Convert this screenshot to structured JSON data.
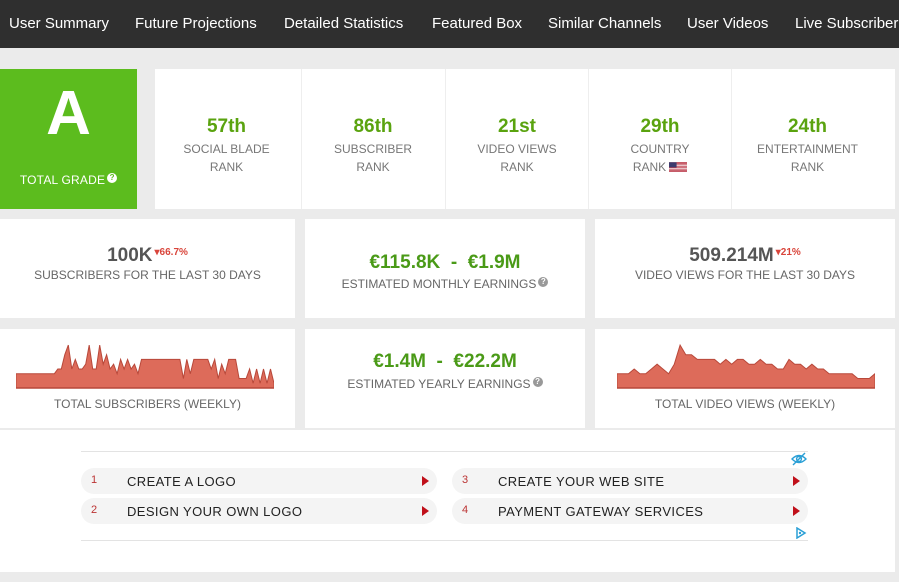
{
  "nav": {
    "items": [
      {
        "label": "User Summary"
      },
      {
        "label": "Future Projections"
      },
      {
        "label": "Detailed Statistics"
      },
      {
        "label": "Featured Box"
      },
      {
        "label": "Similar Channels"
      },
      {
        "label": "User Videos"
      },
      {
        "label": "Live Subscriber"
      }
    ]
  },
  "grade": {
    "letter": "A",
    "label": "TOTAL GRADE",
    "help_icon": "question-circle-icon",
    "color": "#5cbc1e"
  },
  "ranks": [
    {
      "value": "57th",
      "line1": "SOCIAL BLADE",
      "line2": "RANK"
    },
    {
      "value": "86th",
      "line1": "SUBSCRIBER",
      "line2": "RANK"
    },
    {
      "value": "21st",
      "line1": "VIDEO VIEWS",
      "line2": "RANK"
    },
    {
      "value": "29th",
      "line1": "COUNTRY",
      "line2": "RANK",
      "flag": "us-flag-icon"
    },
    {
      "value": "24th",
      "line1": "ENTERTAINMENT",
      "line2": "RANK"
    }
  ],
  "stats": {
    "subscribers_30d": {
      "value": "100K",
      "delta": "66.7%",
      "delta_direction": "down",
      "label": "SUBSCRIBERS FOR THE LAST 30 DAYS"
    },
    "monthly_earnings": {
      "value": "€115.8K  -  €1.9M",
      "label": "ESTIMATED MONTHLY EARNINGS"
    },
    "video_views_30d": {
      "value": "509.214M",
      "delta": "21%",
      "delta_direction": "down",
      "label": "VIDEO VIEWS FOR THE LAST 30 DAYS"
    },
    "yearly_earnings": {
      "value": "€1.4M  -  €22.2M",
      "label": "ESTIMATED YEARLY EARNINGS"
    }
  },
  "charts": {
    "subscribers_weekly": {
      "label": "TOTAL SUBSCRIBERS (WEEKLY)",
      "color": "#dd6b5a",
      "values": [
        3,
        3,
        3,
        3,
        3,
        3,
        3,
        3,
        3,
        3,
        3,
        3,
        4,
        4,
        7,
        9,
        4,
        6,
        4,
        4,
        5,
        9,
        4,
        4,
        9,
        5,
        7,
        4,
        5,
        3,
        6,
        4,
        6,
        4,
        5,
        3,
        6,
        6,
        6,
        6,
        6,
        6,
        6,
        6,
        6,
        6,
        6,
        6,
        2,
        6,
        3,
        6,
        6,
        6,
        6,
        6,
        4,
        6,
        2,
        5,
        3,
        6,
        6,
        6,
        2,
        2,
        2,
        4,
        1,
        4,
        1,
        4,
        1,
        4,
        1
      ]
    },
    "views_weekly": {
      "label": "TOTAL VIDEO VIEWS (WEEKLY)",
      "color": "#dd6b5a",
      "values": [
        3,
        3,
        3,
        4,
        3,
        3,
        4,
        5,
        4,
        3,
        5,
        9,
        7,
        7,
        6,
        6,
        6,
        6,
        5,
        6,
        5,
        6,
        6,
        5,
        5,
        6,
        5,
        5,
        4,
        4,
        6,
        5,
        5,
        4,
        5,
        4,
        4,
        3,
        3,
        3,
        3,
        3,
        2,
        2,
        2,
        3
      ]
    }
  },
  "ads": {
    "items": [
      {
        "num": "1",
        "text": "CREATE A LOGO"
      },
      {
        "num": "2",
        "text": "DESIGN YOUR OWN LOGO"
      },
      {
        "num": "3",
        "text": "CREATE YOUR WEB SITE"
      },
      {
        "num": "4",
        "text": "PAYMENT GATEWAY SERVICES"
      }
    ],
    "hide_icon": "eye-slash-icon",
    "adchoices_icon": "adchoices-icon",
    "accent": "#c0101a"
  }
}
